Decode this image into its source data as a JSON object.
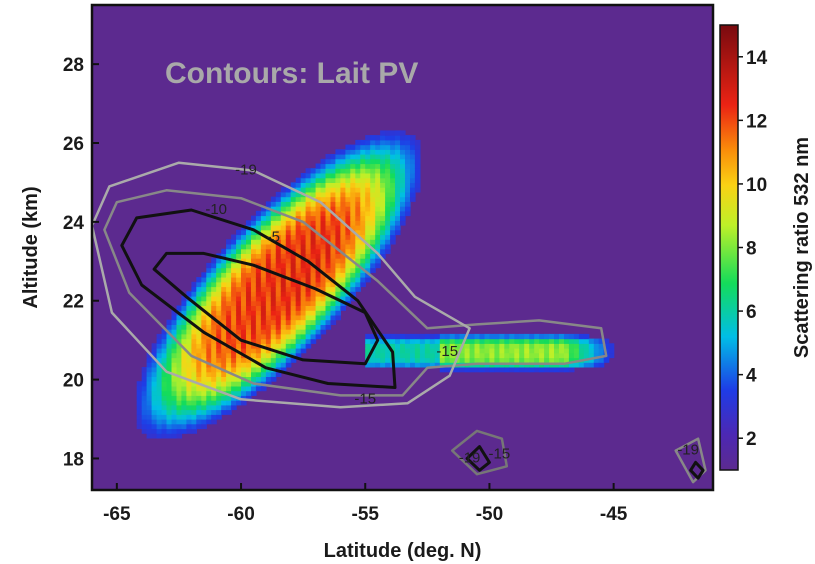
{
  "chart_data": {
    "type": "heatmap",
    "title": "",
    "annotation": "Contours: Lait PV",
    "xlabel": "Latitude (deg. N)",
    "ylabel": "Altitude (km)",
    "colorbar_label": "Scattering ratio 532 nm",
    "xlim": [
      -66,
      -41
    ],
    "ylim": [
      17.2,
      29.5
    ],
    "x_ticks": [
      -65,
      -60,
      -55,
      -50,
      -45
    ],
    "y_ticks": [
      18,
      20,
      22,
      24,
      26,
      28
    ],
    "colorbar_range": [
      1,
      15
    ],
    "colorbar_ticks": [
      2,
      4,
      6,
      8,
      10,
      12,
      14
    ],
    "background_value": 1.2,
    "plume": {
      "core_center": [
        -58.5,
        22.4
      ],
      "core_peak": 13,
      "tail_x_range": [
        -54,
        -45
      ],
      "tail_altitude": 20.7,
      "tail_peak": 11
    },
    "contours": [
      {
        "level": "-5",
        "color": "#111111",
        "points": [
          [
            -63.5,
            22.8
          ],
          [
            -62.2,
            22.1
          ],
          [
            -60,
            21
          ],
          [
            -57.5,
            20.5
          ],
          [
            -55,
            20.4
          ],
          [
            -54.5,
            21
          ],
          [
            -55,
            21.7
          ],
          [
            -57,
            22.3
          ],
          [
            -59.5,
            22.9
          ],
          [
            -61.5,
            23.2
          ],
          [
            -63,
            23.2
          ],
          [
            -63.5,
            22.8
          ]
        ]
      },
      {
        "level": "-10",
        "color": "#111111",
        "points": [
          [
            -64.8,
            23.4
          ],
          [
            -64,
            22.4
          ],
          [
            -61.5,
            21.2
          ],
          [
            -59,
            20.3
          ],
          [
            -56.5,
            19.9
          ],
          [
            -53.8,
            19.8
          ],
          [
            -53.9,
            20.7
          ],
          [
            -55.3,
            22
          ],
          [
            -57.3,
            23
          ],
          [
            -59.5,
            23.8
          ],
          [
            -62,
            24.3
          ],
          [
            -64.2,
            24.1
          ],
          [
            -64.8,
            23.4
          ]
        ]
      },
      {
        "level": "-15",
        "color": "#888888",
        "points": [
          [
            -65.5,
            23.8
          ],
          [
            -64.5,
            22.2
          ],
          [
            -62,
            20.6
          ],
          [
            -59.5,
            19.9
          ],
          [
            -56,
            19.6
          ],
          [
            -53.5,
            19.6
          ],
          [
            -52.5,
            20.3
          ],
          [
            -50.5,
            20.4
          ],
          [
            -47,
            20.4
          ],
          [
            -45.3,
            20.6
          ],
          [
            -45.5,
            21.3
          ],
          [
            -48,
            21.5
          ],
          [
            -50.5,
            21.4
          ],
          [
            -52.5,
            21.3
          ],
          [
            -54.5,
            22.5
          ],
          [
            -57.5,
            24
          ],
          [
            -60,
            24.6
          ],
          [
            -63,
            24.8
          ],
          [
            -65,
            24.5
          ],
          [
            -65.5,
            23.8
          ]
        ]
      },
      {
        "level": "-19",
        "color": "#aaaaaa",
        "points": [
          [
            -66,
            23.9
          ],
          [
            -65.2,
            21.7
          ],
          [
            -63,
            20.2
          ],
          [
            -60,
            19.5
          ],
          [
            -56,
            19.3
          ],
          [
            -53.3,
            19.4
          ],
          [
            -51.6,
            20.1
          ],
          [
            -50.8,
            21.3
          ],
          [
            -53,
            22.1
          ],
          [
            -54.5,
            23.2
          ],
          [
            -56.8,
            24.5
          ],
          [
            -59.5,
            25.3
          ],
          [
            -62.5,
            25.5
          ],
          [
            -65.3,
            24.9
          ],
          [
            -66,
            23.9
          ]
        ]
      },
      {
        "level": "",
        "color": "#777777",
        "points": [
          [
            -51.5,
            18.2
          ],
          [
            -50.5,
            17.6
          ],
          [
            -49.3,
            17.8
          ],
          [
            -49.5,
            18.5
          ],
          [
            -50.5,
            18.7
          ],
          [
            -51.5,
            18.2
          ]
        ]
      },
      {
        "level": "",
        "color": "#111111",
        "points": [
          [
            -50.9,
            18.0
          ],
          [
            -50.4,
            17.7
          ],
          [
            -50.0,
            17.9
          ],
          [
            -50.4,
            18.3
          ],
          [
            -50.9,
            18.0
          ]
        ]
      },
      {
        "level": "",
        "color": "#888888",
        "points": [
          [
            -42.5,
            18.2
          ],
          [
            -41.8,
            17.4
          ],
          [
            -41.3,
            17.7
          ],
          [
            -41.6,
            18.5
          ],
          [
            -42.5,
            18.2
          ]
        ]
      },
      {
        "level": "",
        "color": "#111111",
        "points": [
          [
            -41.9,
            17.7
          ],
          [
            -41.6,
            17.5
          ],
          [
            -41.4,
            17.7
          ],
          [
            -41.7,
            17.9
          ],
          [
            -41.9,
            17.7
          ]
        ]
      }
    ],
    "contour_labels": [
      {
        "text": "-19",
        "x": -59.8,
        "y": 25.2
      },
      {
        "text": "-10",
        "x": -61.0,
        "y": 24.2
      },
      {
        "text": "-5",
        "x": -58.7,
        "y": 23.5
      },
      {
        "text": "-15",
        "x": -51.7,
        "y": 20.6
      },
      {
        "text": "-15",
        "x": -55.0,
        "y": 19.4
      },
      {
        "text": "-19",
        "x": -50.8,
        "y": 17.9
      },
      {
        "text": "-15",
        "x": -49.6,
        "y": 18.0
      },
      {
        "text": "-19",
        "x": -42.0,
        "y": 18.1
      }
    ],
    "colors": {
      "background": "#5c2a8f",
      "frame": "#111111",
      "annotation": "#a9a9a9"
    }
  }
}
